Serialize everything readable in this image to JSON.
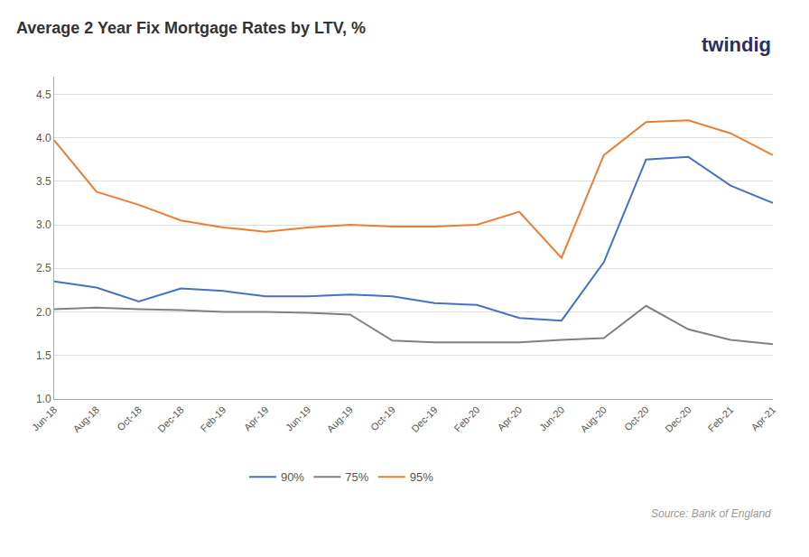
{
  "chart_data": {
    "type": "line",
    "title": "Average 2 Year Fix Mortgage Rates by LTV, %",
    "categories": [
      "Jun-18",
      "Aug-18",
      "Oct-18",
      "Dec-18",
      "Feb-19",
      "Apr-19",
      "Jun-19",
      "Aug-19",
      "Oct-19",
      "Dec-19",
      "Feb-20",
      "Apr-20",
      "Jun-20",
      "Aug-20",
      "Oct-20",
      "Dec-20",
      "Feb-21",
      "Apr-21"
    ],
    "series": [
      {
        "name": "90%",
        "color": "#4472C4",
        "values": [
          2.35,
          2.28,
          2.12,
          2.27,
          2.24,
          2.18,
          2.18,
          2.2,
          2.18,
          2.1,
          2.08,
          1.93,
          1.9,
          2.57,
          3.75,
          3.78,
          3.45,
          3.25
        ]
      },
      {
        "name": "75%",
        "color": "#808080",
        "values": [
          2.03,
          2.05,
          2.03,
          2.02,
          2.0,
          2.0,
          1.99,
          1.97,
          1.67,
          1.65,
          1.65,
          1.65,
          1.68,
          1.7,
          2.07,
          1.8,
          1.68,
          1.63
        ]
      },
      {
        "name": "95%",
        "color": "#ED7D31",
        "values": [
          3.97,
          3.38,
          3.23,
          3.05,
          2.97,
          2.92,
          2.97,
          3.0,
          2.98,
          2.98,
          3.0,
          3.15,
          2.62,
          3.8,
          4.18,
          4.2,
          4.05,
          3.8
        ]
      }
    ],
    "ylim": [
      1.0,
      4.7
    ],
    "yticks": [
      {
        "value": 1.0,
        "label": "1.0"
      },
      1.5,
      {
        "value": 2.0,
        "label": "2.0"
      },
      2.5,
      {
        "value": 3.0,
        "label": "3.0"
      },
      3.5,
      {
        "value": 4.0,
        "label": "4.0"
      },
      4.5
    ],
    "grid": true,
    "legend": "bottom",
    "annotations": [
      "twindig",
      "Source: Bank of England"
    ]
  }
}
